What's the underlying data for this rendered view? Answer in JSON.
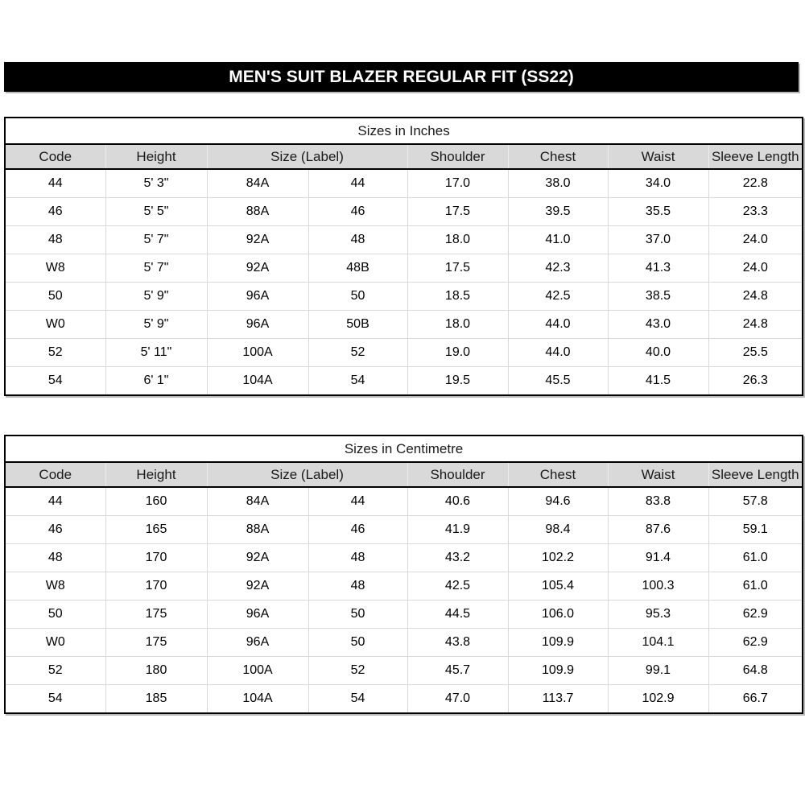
{
  "banner": {
    "title": "MEN'S SUIT BLAZER REGULAR FIT (SS22)"
  },
  "tables": [
    {
      "title": "Sizes in Inches",
      "headers": [
        "Code",
        "Height",
        "Size (Label)",
        "Shoulder",
        "Chest",
        "Waist",
        "Sleeve Length"
      ],
      "header_spans": [
        1,
        1,
        2,
        1,
        1,
        1,
        1
      ],
      "rows": [
        [
          "44",
          "5' 3\"",
          "84A",
          "44",
          "17.0",
          "38.0",
          "34.0",
          "22.8"
        ],
        [
          "46",
          "5' 5\"",
          "88A",
          "46",
          "17.5",
          "39.5",
          "35.5",
          "23.3"
        ],
        [
          "48",
          "5' 7\"",
          "92A",
          "48",
          "18.0",
          "41.0",
          "37.0",
          "24.0"
        ],
        [
          "W8",
          "5' 7\"",
          "92A",
          "48B",
          "17.5",
          "42.3",
          "41.3",
          "24.0"
        ],
        [
          "50",
          "5' 9\"",
          "96A",
          "50",
          "18.5",
          "42.5",
          "38.5",
          "24.8"
        ],
        [
          "W0",
          "5' 9\"",
          "96A",
          "50B",
          "18.0",
          "44.0",
          "43.0",
          "24.8"
        ],
        [
          "52",
          "5' 11\"",
          "100A",
          "52",
          "19.0",
          "44.0",
          "40.0",
          "25.5"
        ],
        [
          "54",
          "6' 1\"",
          "104A",
          "54",
          "19.5",
          "45.5",
          "41.5",
          "26.3"
        ]
      ]
    },
    {
      "title": "Sizes in Centimetre",
      "headers": [
        "Code",
        "Height",
        "Size (Label)",
        "Shoulder",
        "Chest",
        "Waist",
        "Sleeve Length"
      ],
      "header_spans": [
        1,
        1,
        2,
        1,
        1,
        1,
        1
      ],
      "rows": [
        [
          "44",
          "160",
          "84A",
          "44",
          "40.6",
          "94.6",
          "83.8",
          "57.8"
        ],
        [
          "46",
          "165",
          "88A",
          "46",
          "41.9",
          "98.4",
          "87.6",
          "59.1"
        ],
        [
          "48",
          "170",
          "92A",
          "48",
          "43.2",
          "102.2",
          "91.4",
          "61.0"
        ],
        [
          "W8",
          "170",
          "92A",
          "48",
          "42.5",
          "105.4",
          "100.3",
          "61.0"
        ],
        [
          "50",
          "175",
          "96A",
          "50",
          "44.5",
          "106.0",
          "95.3",
          "62.9"
        ],
        [
          "W0",
          "175",
          "96A",
          "50",
          "43.8",
          "109.9",
          "104.1",
          "62.9"
        ],
        [
          "52",
          "180",
          "100A",
          "52",
          "45.7",
          "109.9",
          "99.1",
          "64.8"
        ],
        [
          "54",
          "185",
          "104A",
          "54",
          "47.0",
          "113.7",
          "102.9",
          "66.7"
        ]
      ]
    }
  ],
  "colors": {
    "banner_bg": "#000000",
    "banner_text": "#ffffff",
    "header_bg": "#d9d9d9",
    "grid_line": "#d9d9d9",
    "table_border": "#000000",
    "shadow": "#b9b9b9"
  }
}
